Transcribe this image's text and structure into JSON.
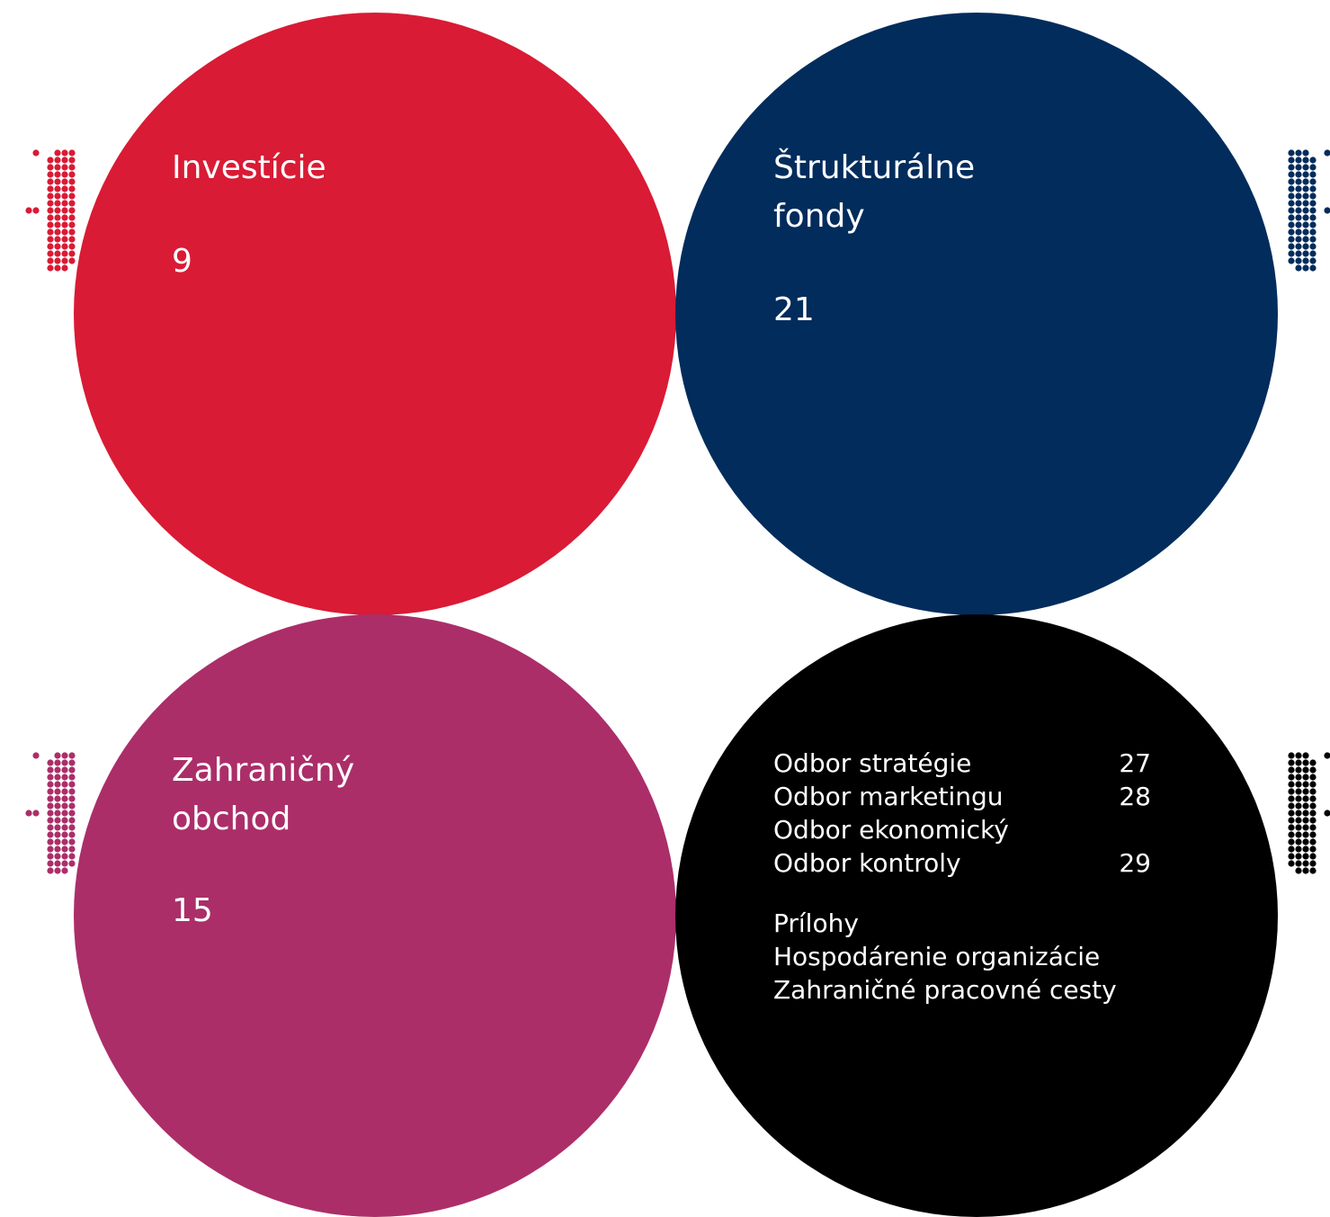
{
  "sections": [
    {
      "title": "Investície",
      "page": 9,
      "color": "#d91b35"
    },
    {
      "title": "Štrukturálne fondy",
      "page": 21,
      "color": "#022c5c"
    },
    {
      "title": "Zahraničný obchod",
      "page": 15,
      "color": "#ab2e69"
    }
  ],
  "index": {
    "color": "#000000",
    "entries": [
      {
        "label": "Odbor stratégie",
        "page": 27
      },
      {
        "label": "Odbor marketingu",
        "page": 28
      },
      {
        "label": "Odbor ekonomický"
      },
      {
        "label": "Odbor kontroly",
        "page": 29
      }
    ],
    "appendix": {
      "title": "Prílohy",
      "items": [
        "Hospodárenie organizácie",
        "Zahraničné pracovné cesty"
      ]
    }
  }
}
